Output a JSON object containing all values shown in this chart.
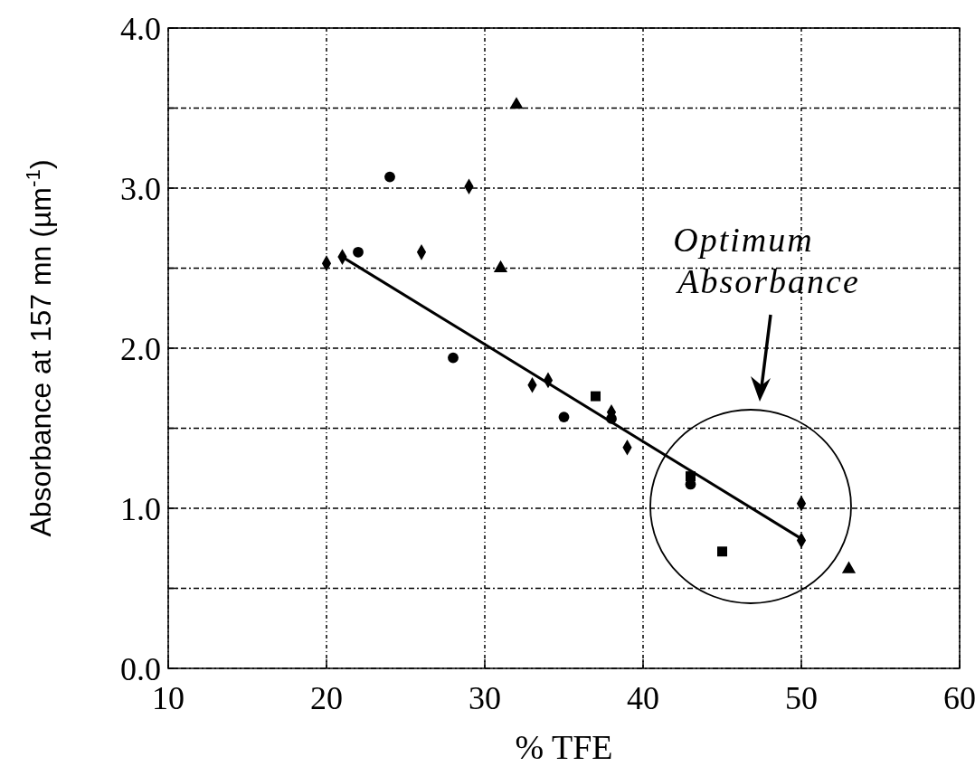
{
  "chart_data": {
    "type": "scatter",
    "xlabel": "% TFE",
    "ylabel": "Absorbance at 157 mn (µm$^{-1}$)",
    "xlim": [
      10,
      60
    ],
    "xticks": [
      10,
      20,
      30,
      40,
      50,
      60
    ],
    "ylim": [
      0,
      4
    ],
    "yticks": [
      {
        "value": 0,
        "label": "0.0"
      },
      {
        "value": 0.5,
        "label": null
      },
      {
        "value": 1,
        "label": "1.0"
      },
      {
        "value": 1.5,
        "label": null
      },
      {
        "value": 2,
        "label": "2.0"
      },
      {
        "value": 2.5,
        "label": null
      },
      {
        "value": 3,
        "label": "3.0"
      },
      {
        "value": 3.5,
        "label": null
      },
      {
        "value": 4,
        "label": "4.0"
      }
    ],
    "grid": true,
    "series": [
      {
        "color": "#000000",
        "marker": "diamond",
        "x": [
          20,
          21,
          26,
          29,
          33,
          34,
          38,
          39,
          50,
          50
        ],
        "values": [
          2.53,
          2.57,
          2.6,
          3.01,
          1.77,
          1.8,
          1.6,
          1.38,
          1.03,
          0.8
        ]
      },
      {
        "color": "#000000",
        "marker": "circle",
        "x": [
          22,
          24,
          28,
          35,
          38,
          43
        ],
        "values": [
          2.6,
          3.07,
          1.94,
          1.57,
          1.56,
          1.15
        ]
      },
      {
        "color": "#000000",
        "marker": "square",
        "x": [
          37,
          43,
          45
        ],
        "values": [
          1.7,
          1.2,
          0.73
        ]
      },
      {
        "color": "#000000",
        "marker": "triangle",
        "x": [
          31,
          32,
          53
        ],
        "values": [
          2.5,
          3.52,
          0.62
        ]
      },
      {
        "type": "line",
        "color": "#000000",
        "marker": "none",
        "line_style": "solid",
        "x": [
          21,
          50
        ],
        "values": [
          2.57,
          0.81
        ]
      }
    ],
    "annotations": [
      "Optimum Absorbance"
    ]
  }
}
